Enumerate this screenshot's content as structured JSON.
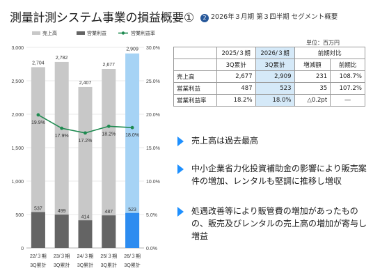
{
  "header": {
    "title": "測量計測システム事業の損益概要①",
    "subtitle_num": "2",
    "subtitle": "2026年３月期 第３四半期 セグメント概要"
  },
  "chart_data": {
    "type": "bar",
    "categories": [
      [
        "22/３期",
        "3Q累計"
      ],
      [
        "23/３期",
        "3Q累計"
      ],
      [
        "24/３期",
        "3Q累計"
      ],
      [
        "25/３期",
        "3Q累計"
      ],
      [
        "26/３期",
        "3Q累計"
      ]
    ],
    "series": [
      {
        "name": "売上高",
        "kind": "bar",
        "axis": "left",
        "values": [
          2704,
          2782,
          2407,
          2677,
          2909
        ],
        "colors": [
          "#c8c8c8",
          "#c8c8c8",
          "#c8c8c8",
          "#c8c8c8",
          "#a6d3f5"
        ]
      },
      {
        "name": "営業利益",
        "kind": "bar",
        "axis": "left",
        "values": [
          537,
          499,
          414,
          487,
          523
        ],
        "colors": [
          "#646464",
          "#646464",
          "#646464",
          "#646464",
          "#2d8cf0"
        ]
      },
      {
        "name": "営業利益率",
        "kind": "line",
        "axis": "right",
        "values": [
          19.9,
          17.9,
          17.2,
          18.2,
          18.0
        ],
        "labels": [
          "19.9%",
          "17.9%",
          "17.2%",
          "18.2%",
          "18.0%"
        ],
        "color": "#1e8a50"
      }
    ],
    "y_left": {
      "min": 0,
      "max": 3000,
      "ticks": [
        0,
        500,
        1000,
        1500,
        2000,
        2500,
        3000
      ],
      "tick_labels": [
        "0",
        "500",
        "1,000",
        "1,500",
        "2,000",
        "2,500",
        "3,000"
      ]
    },
    "y_right": {
      "min": 0,
      "max": 30,
      "ticks": [
        0,
        5,
        10,
        15,
        20,
        25,
        30
      ],
      "tick_labels": [
        "0.0%",
        "5.0%",
        "10.0%",
        "15.0%",
        "20.0%",
        "25.0%",
        "30.0%"
      ]
    },
    "value_labels": {
      "sales": [
        "2,704",
        "2,782",
        "2,407",
        "2,677",
        "2,909"
      ],
      "op": [
        "537",
        "499",
        "414",
        "487",
        "523"
      ]
    },
    "grid": true,
    "legend_position": "top"
  },
  "table": {
    "unit": "単位：百万円",
    "header1": [
      "",
      "2025/３期",
      "2026/３期",
      "前期対比",
      ""
    ],
    "header2": [
      "",
      "3Q累計",
      "3Q累計",
      "増減額",
      "前期比"
    ],
    "rows": [
      [
        "売上高",
        "2,677",
        "2,909",
        "231",
        "108.7%"
      ],
      [
        "営業利益",
        "487",
        "523",
        "35",
        "107.2%"
      ],
      [
        "営業利益率",
        "18.2%",
        "18.0%",
        "△0.2pt",
        "―"
      ]
    ]
  },
  "bullets": [
    "売上高は過去最高",
    "中小企業省力化投資補助金の影響により販売案件の増加、レンタルも堅調に推移し増収",
    "処遇改善等により販管費の増加があったものの、販売及びレンタルの売上高の増加が寄与し増益"
  ]
}
